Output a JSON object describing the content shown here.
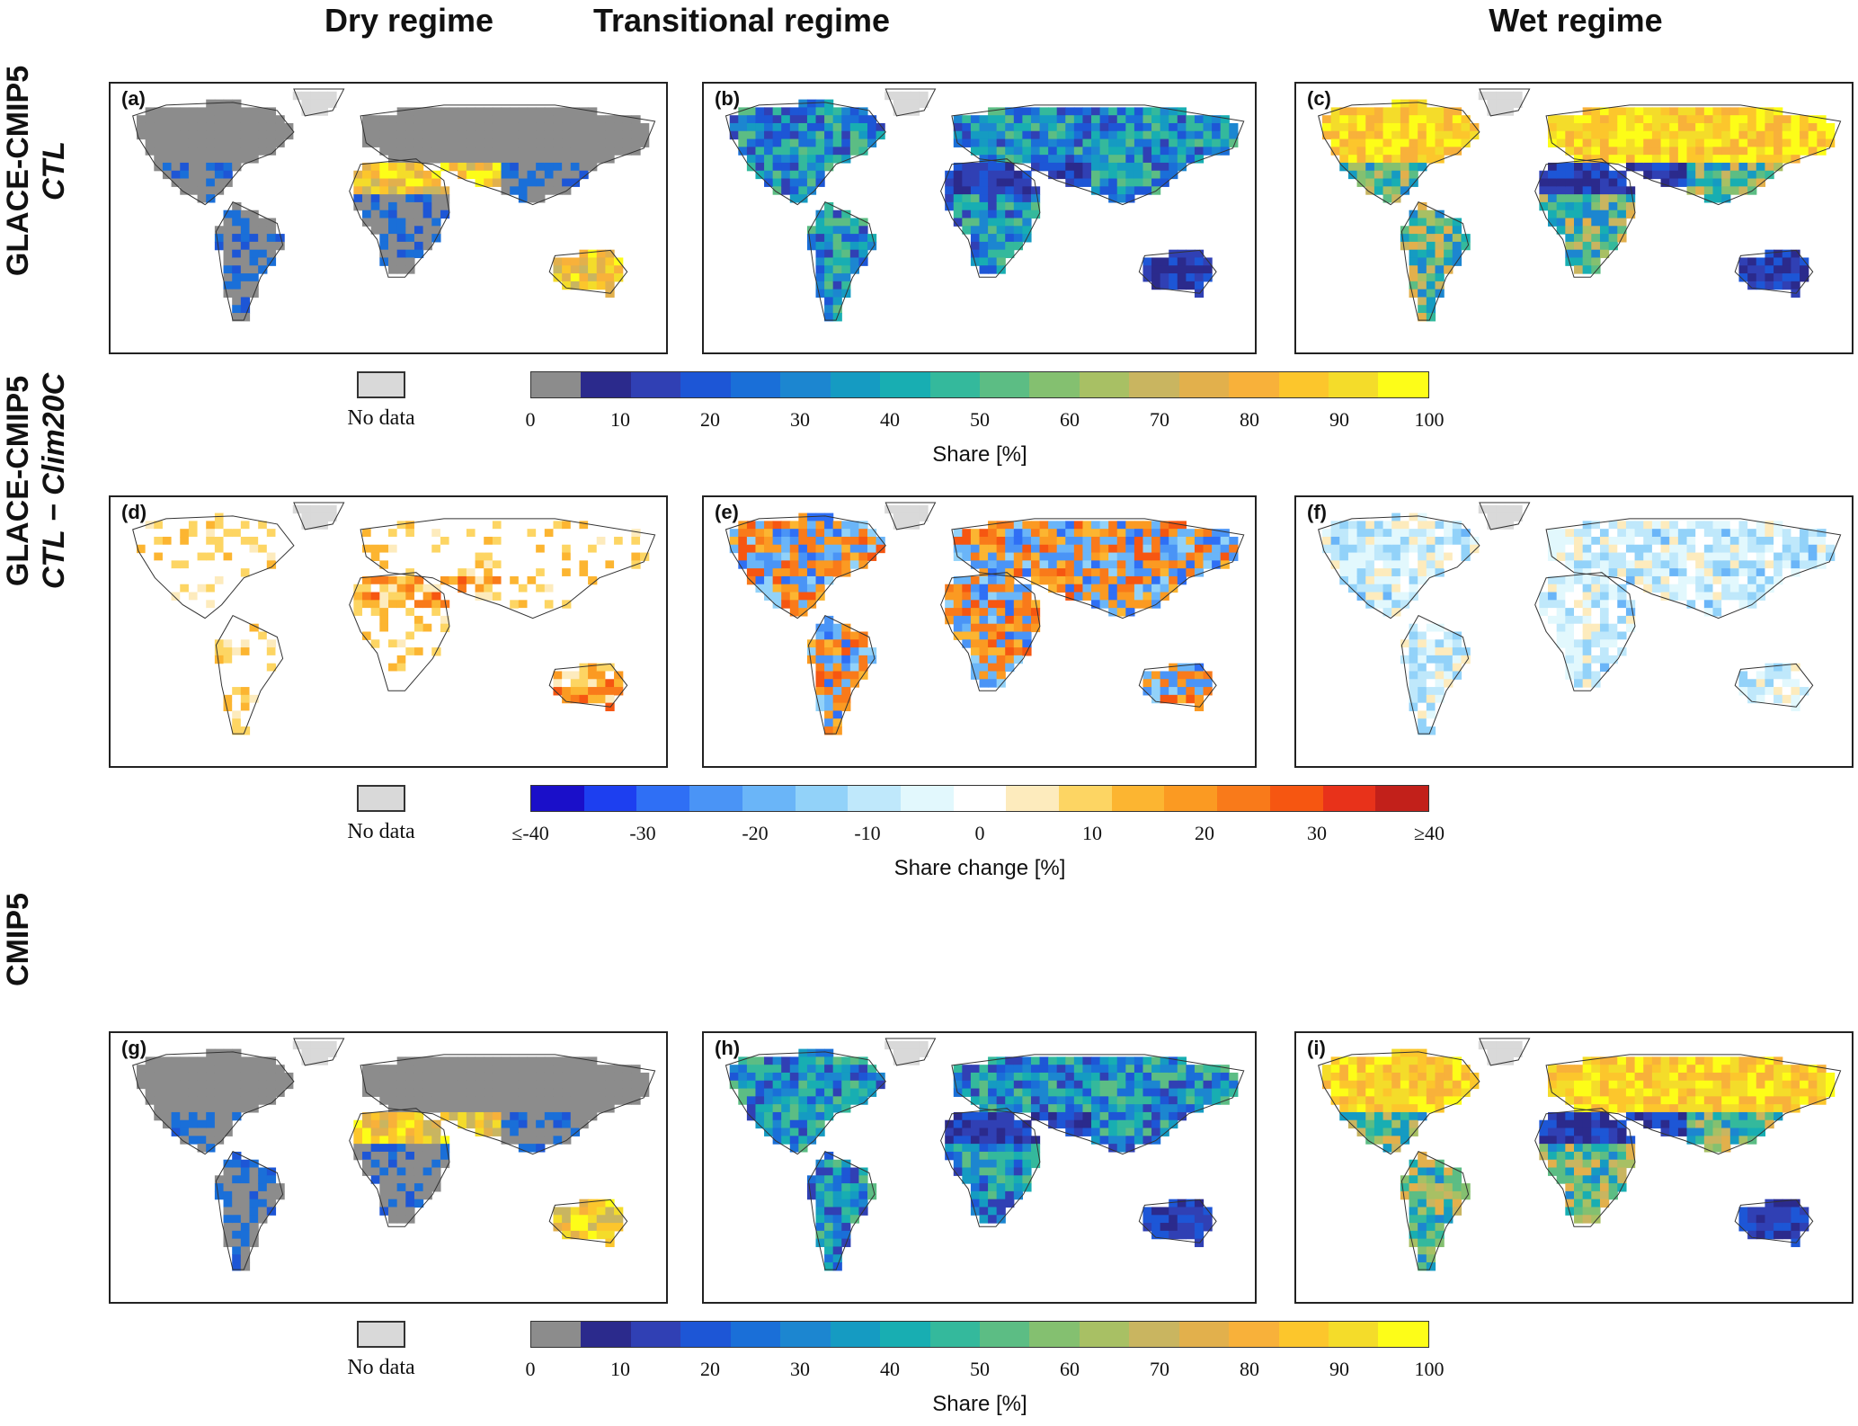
{
  "columns": [
    "Dry regime",
    "Transitional regime",
    "Wet regime"
  ],
  "rows": [
    {
      "line1": "GLACE-CMIP5",
      "line2": "CTL"
    },
    {
      "line1": "GLACE-CMIP5",
      "line2": "CTL − Clim20C"
    },
    {
      "line1": "CMIP5",
      "line2": ""
    }
  ],
  "panels": [
    "(a)",
    "(b)",
    "(c)",
    "(d)",
    "(e)",
    "(f)",
    "(g)",
    "(h)",
    "(i)"
  ],
  "legend": {
    "no_data": "No data",
    "share": {
      "label": "Share [%]",
      "ticks": [
        "0",
        "10",
        "20",
        "30",
        "40",
        "50",
        "60",
        "70",
        "80",
        "90",
        "100"
      ],
      "colors": [
        "#8c8c8c",
        "#2b2a8c",
        "#3040b4",
        "#1d56d6",
        "#1a6fd8",
        "#1c86d0",
        "#159bc2",
        "#18aeb2",
        "#34b99c",
        "#5cbd84",
        "#84c070",
        "#a8c064",
        "#c9b560",
        "#e2b04c",
        "#f8b13a",
        "#fcc62c",
        "#f4dc2a",
        "#fdfd18"
      ],
      "nodata_color": "#d9d9d9"
    },
    "change": {
      "label": "Share change [%]",
      "ticks": [
        "≤-40",
        "-30",
        "-20",
        "-10",
        "0",
        "10",
        "20",
        "30",
        "≥40"
      ],
      "colors": [
        "#1a0fc9",
        "#1d3ff0",
        "#2f6ff5",
        "#4a94f6",
        "#6ab5f8",
        "#92d2f9",
        "#bfe8fb",
        "#e2f8fd",
        "#ffffff",
        "#fdebbd",
        "#fdd563",
        "#fcb531",
        "#fb9a22",
        "#f97a1a",
        "#f65611",
        "#e8321a",
        "#c2201a"
      ]
    }
  }
}
